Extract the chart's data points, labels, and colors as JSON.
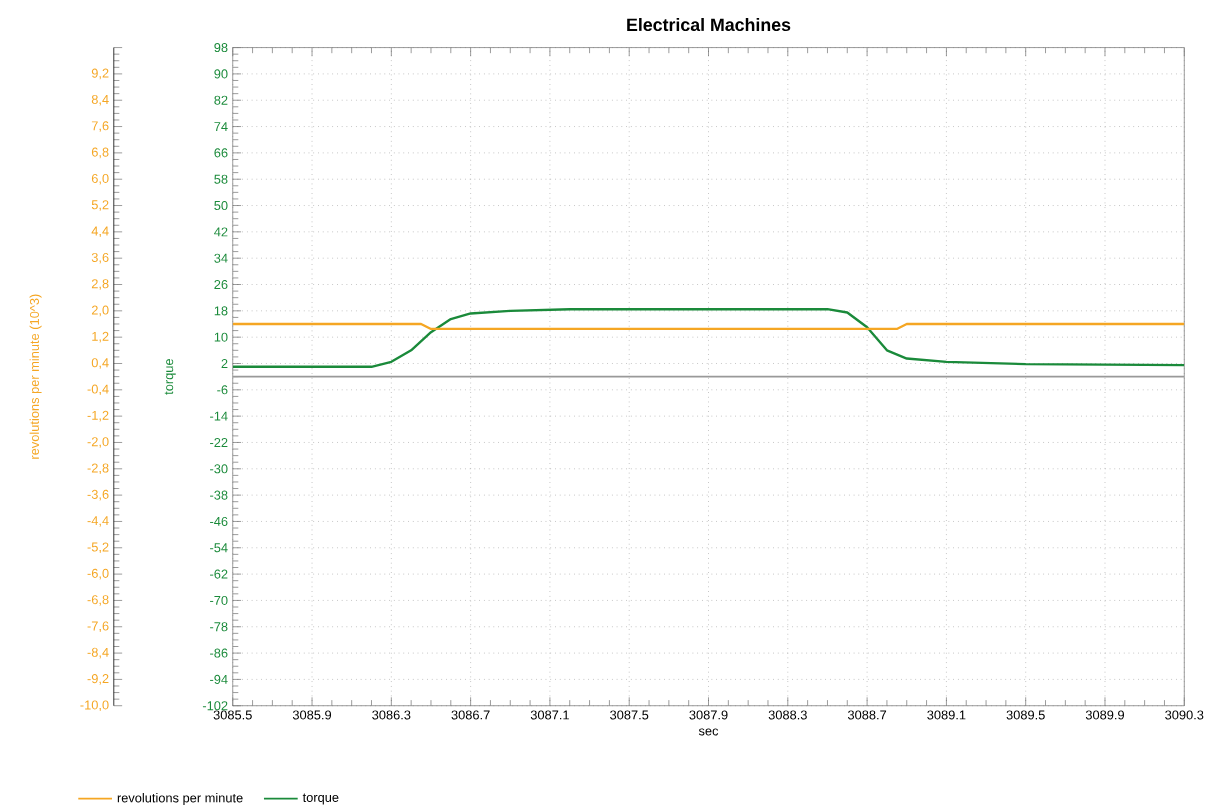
{
  "chart_data": {
    "type": "line",
    "title": "Electrical Machines",
    "xlabel": "sec",
    "ylabel": "torque",
    "y2label": "revolutions per minute (10^3)",
    "xlim": [
      3085.5,
      3090.3
    ],
    "xticks": [
      {
        "value": 3085.5,
        "label": "3085.5"
      },
      {
        "value": 3085.9,
        "label": "3085.9"
      },
      {
        "value": 3086.3,
        "label": "3086.3"
      },
      {
        "value": 3086.7,
        "label": "3086.7"
      },
      {
        "value": 3087.1,
        "label": "3087.1"
      },
      {
        "value": 3087.5,
        "label": "3087.5"
      },
      {
        "value": 3087.9,
        "label": "3087.9"
      },
      {
        "value": 3088.3,
        "label": "3088.3"
      },
      {
        "value": 3088.7,
        "label": "3088.7"
      },
      {
        "value": 3089.1,
        "label": "3089.1"
      },
      {
        "value": 3089.5,
        "label": "3089.5"
      },
      {
        "value": 3089.9,
        "label": "3089.9"
      },
      {
        "value": 3090.3,
        "label": "3090.3"
      }
    ],
    "ylim": [
      -102,
      98
    ],
    "yticks": [
      -102,
      -94,
      -86,
      -78,
      -70,
      -62,
      -54,
      -46,
      -38,
      -30,
      -22,
      -14,
      -6,
      2,
      10,
      18,
      26,
      34,
      42,
      50,
      58,
      66,
      74,
      82,
      90,
      98
    ],
    "y2lim": [
      -10,
      10
    ],
    "y2ticks": [
      {
        "value": -10,
        "label": "-10,0"
      },
      {
        "value": -9.2,
        "label": "-9,2"
      },
      {
        "value": -8.4,
        "label": "-8,4"
      },
      {
        "value": -7.6,
        "label": "-7,6"
      },
      {
        "value": -6.8,
        "label": "-6,8"
      },
      {
        "value": -6.0,
        "label": "-6,0"
      },
      {
        "value": -5.2,
        "label": "-5,2"
      },
      {
        "value": -4.4,
        "label": "-4,4"
      },
      {
        "value": -3.6,
        "label": "-3,6"
      },
      {
        "value": -2.8,
        "label": "-2,8"
      },
      {
        "value": -2.0,
        "label": "-2,0"
      },
      {
        "value": -1.2,
        "label": "-1,2"
      },
      {
        "value": -0.4,
        "label": "-0,4"
      },
      {
        "value": 0.4,
        "label": "0,4"
      },
      {
        "value": 1.2,
        "label": "1,2"
      },
      {
        "value": 2.0,
        "label": "2,0"
      },
      {
        "value": 2.8,
        "label": "2,8"
      },
      {
        "value": 3.6,
        "label": "3,6"
      },
      {
        "value": 4.4,
        "label": "4,4"
      },
      {
        "value": 5.2,
        "label": "5,2"
      },
      {
        "value": 6.0,
        "label": "6,0"
      },
      {
        "value": 6.8,
        "label": "6,8"
      },
      {
        "value": 7.6,
        "label": "7,6"
      },
      {
        "value": 8.4,
        "label": "8,4"
      },
      {
        "value": 9.2,
        "label": "9,2"
      },
      {
        "value": 10,
        "label": null
      }
    ],
    "grid": true,
    "legend": "bottom left",
    "ref_lines": [
      {
        "axis": "y2",
        "value": 0,
        "color": "#999999"
      }
    ],
    "series": [
      {
        "name": "revolutions per minute",
        "color": "#f5a623",
        "axis": "y2",
        "x": [
          3085.5,
          3086.45,
          3086.5,
          3088.85,
          3088.9,
          3090.3
        ],
        "values": [
          1.6,
          1.6,
          1.45,
          1.45,
          1.6,
          1.6
        ]
      },
      {
        "name": "torque",
        "color": "#1a8a3a",
        "axis": "y",
        "x": [
          3085.5,
          3086.2,
          3086.3,
          3086.4,
          3086.5,
          3086.6,
          3086.7,
          3086.9,
          3087.2,
          3088.5,
          3088.6,
          3088.7,
          3088.8,
          3088.9,
          3089.1,
          3089.5,
          3090.3
        ],
        "values": [
          1.0,
          1.0,
          2.5,
          6,
          11.5,
          15.5,
          17.2,
          18.0,
          18.5,
          18.5,
          17.5,
          13,
          6,
          3.5,
          2.5,
          1.8,
          1.5
        ]
      }
    ]
  }
}
